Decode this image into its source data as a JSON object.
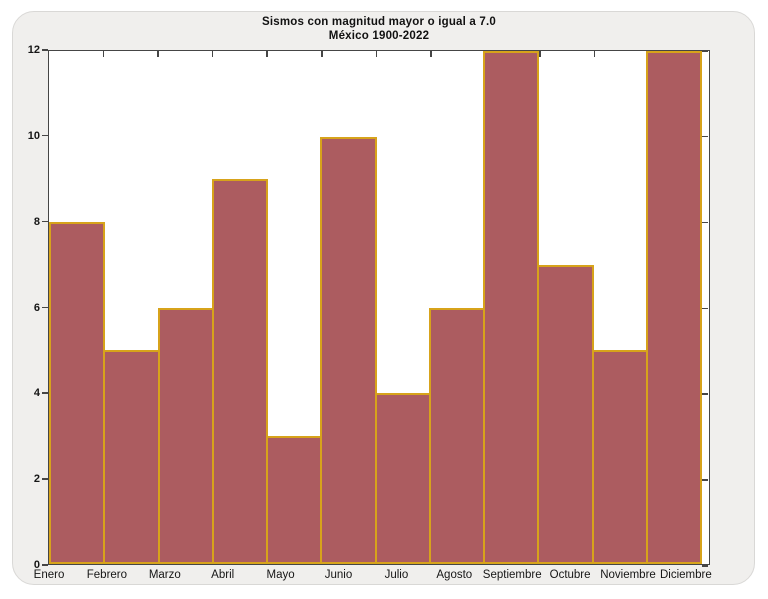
{
  "chart_data": {
    "type": "bar",
    "title": "Sismos con magnitud mayor o igual a 7.0",
    "subtitle": "México 1900-2022",
    "categories": [
      "Enero",
      "Febrero",
      "Marzo",
      "Abril",
      "Mayo",
      "Junio",
      "Julio",
      "Agosto",
      "Septiembre",
      "Octubre",
      "Noviembre",
      "Diciembre"
    ],
    "values": [
      8,
      5,
      6,
      9,
      3,
      10,
      4,
      6,
      12,
      7,
      5,
      12
    ],
    "xlabel": "",
    "ylabel": "",
    "ylim": [
      0,
      12
    ],
    "yticks": [
      0,
      2,
      4,
      6,
      8,
      10,
      12
    ],
    "grid": false,
    "legend": null,
    "bar_fill": "#ac5c60",
    "bar_edge": "#d7a31b",
    "frame_color": "#454545",
    "panel_bg": "#f0efed",
    "text_color": "#161616"
  }
}
